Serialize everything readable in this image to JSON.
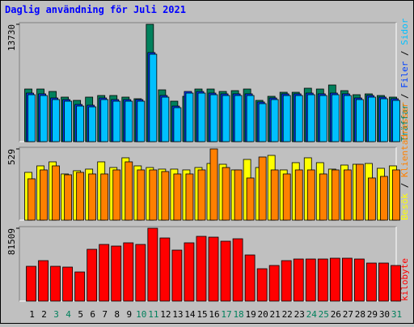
{
  "title": "Daglig användning för Juli 2021",
  "chart_data": [
    {
      "type": "bar",
      "ylim": [
        0,
        13730
      ],
      "yticks": [
        13730
      ],
      "series": [
        {
          "name": "Träffar",
          "color": "#00805c",
          "values": [
            6155,
            6155,
            5871,
            5208,
            4829,
            5208,
            5397,
            5397,
            5208,
            5019,
            13730,
            6060,
            4734,
            5303,
            6155,
            6155,
            5871,
            5966,
            6155,
            4829,
            5303,
            5776,
            5776,
            6250,
            6155,
            6628,
            5966,
            5492,
            5587,
            5397,
            5208
          ]
        },
        {
          "name": "Filer",
          "color": "#0040ff",
          "values": [
            5680,
            5590,
            5110,
            4920,
            4350,
            4260,
            5110,
            4920,
            4920,
            4920,
            10420,
            5400,
            4160,
            5870,
            5870,
            5680,
            5590,
            5590,
            5590,
            4640,
            5110,
            5590,
            5590,
            5680,
            5590,
            5680,
            5590,
            5110,
            5400,
            5210,
            5020
          ]
        },
        {
          "name": "Sidor",
          "color": "#00c0ff",
          "values": [
            5492,
            5397,
            4924,
            4734,
            4166,
            4072,
            4924,
            4734,
            4734,
            4734,
            10227,
            5208,
            3977,
            5681,
            5681,
            5492,
            5397,
            5397,
            5397,
            4450,
            4924,
            5397,
            5397,
            5492,
            5397,
            5492,
            5397,
            4924,
            5208,
            5019,
            4829
          ]
        }
      ]
    },
    {
      "type": "bar",
      "ylim": [
        0,
        529
      ],
      "yticks": [
        529
      ],
      "series": [
        {
          "name": "Besök",
          "color": "#ffff00",
          "values": [
            355,
            403,
            433,
            343,
            367,
            379,
            433,
            391,
            463,
            403,
            391,
            379,
            379,
            373,
            391,
            421,
            415,
            373,
            451,
            391,
            481,
            373,
            427,
            463,
            427,
            379,
            409,
            415,
            421,
            385,
            403
          ]
        },
        {
          "name": "Klientadresser",
          "color": "#ff8000",
          "values": [
            307,
            373,
            403,
            337,
            355,
            343,
            343,
            373,
            433,
            373,
            373,
            361,
            343,
            343,
            373,
            529,
            391,
            373,
            313,
            469,
            373,
            343,
            373,
            373,
            343,
            373,
            373,
            415,
            313,
            325,
            373
          ]
        }
      ]
    },
    {
      "type": "bar",
      "ylim": [
        0,
        81509
      ],
      "yticks": [
        81509
      ],
      "categories": [
        "1",
        "2",
        "3",
        "4",
        "5",
        "6",
        "7",
        "8",
        "9",
        "10",
        "11",
        "12",
        "13",
        "14",
        "15",
        "16",
        "17",
        "18",
        "19",
        "20",
        "21",
        "22",
        "23",
        "24",
        "25",
        "26",
        "27",
        "28",
        "29",
        "30",
        "31"
      ],
      "weekend": [
        2,
        3,
        9,
        10,
        16,
        17,
        23,
        24,
        30
      ],
      "weekend_color": "#00805c",
      "series": [
        {
          "name": "kilobyte",
          "color": "#ff0000",
          "values": [
            38944,
            45283,
            38944,
            38038,
            32604,
            57963,
            63398,
            61586,
            65209,
            63398,
            81509,
            70643,
            57058,
            65209,
            72453,
            71548,
            67020,
            69737,
            51623,
            36226,
            39849,
            45283,
            47094,
            47094,
            47094,
            48000,
            48000,
            47094,
            42566,
            42566,
            39849
          ]
        }
      ]
    }
  ]
}
